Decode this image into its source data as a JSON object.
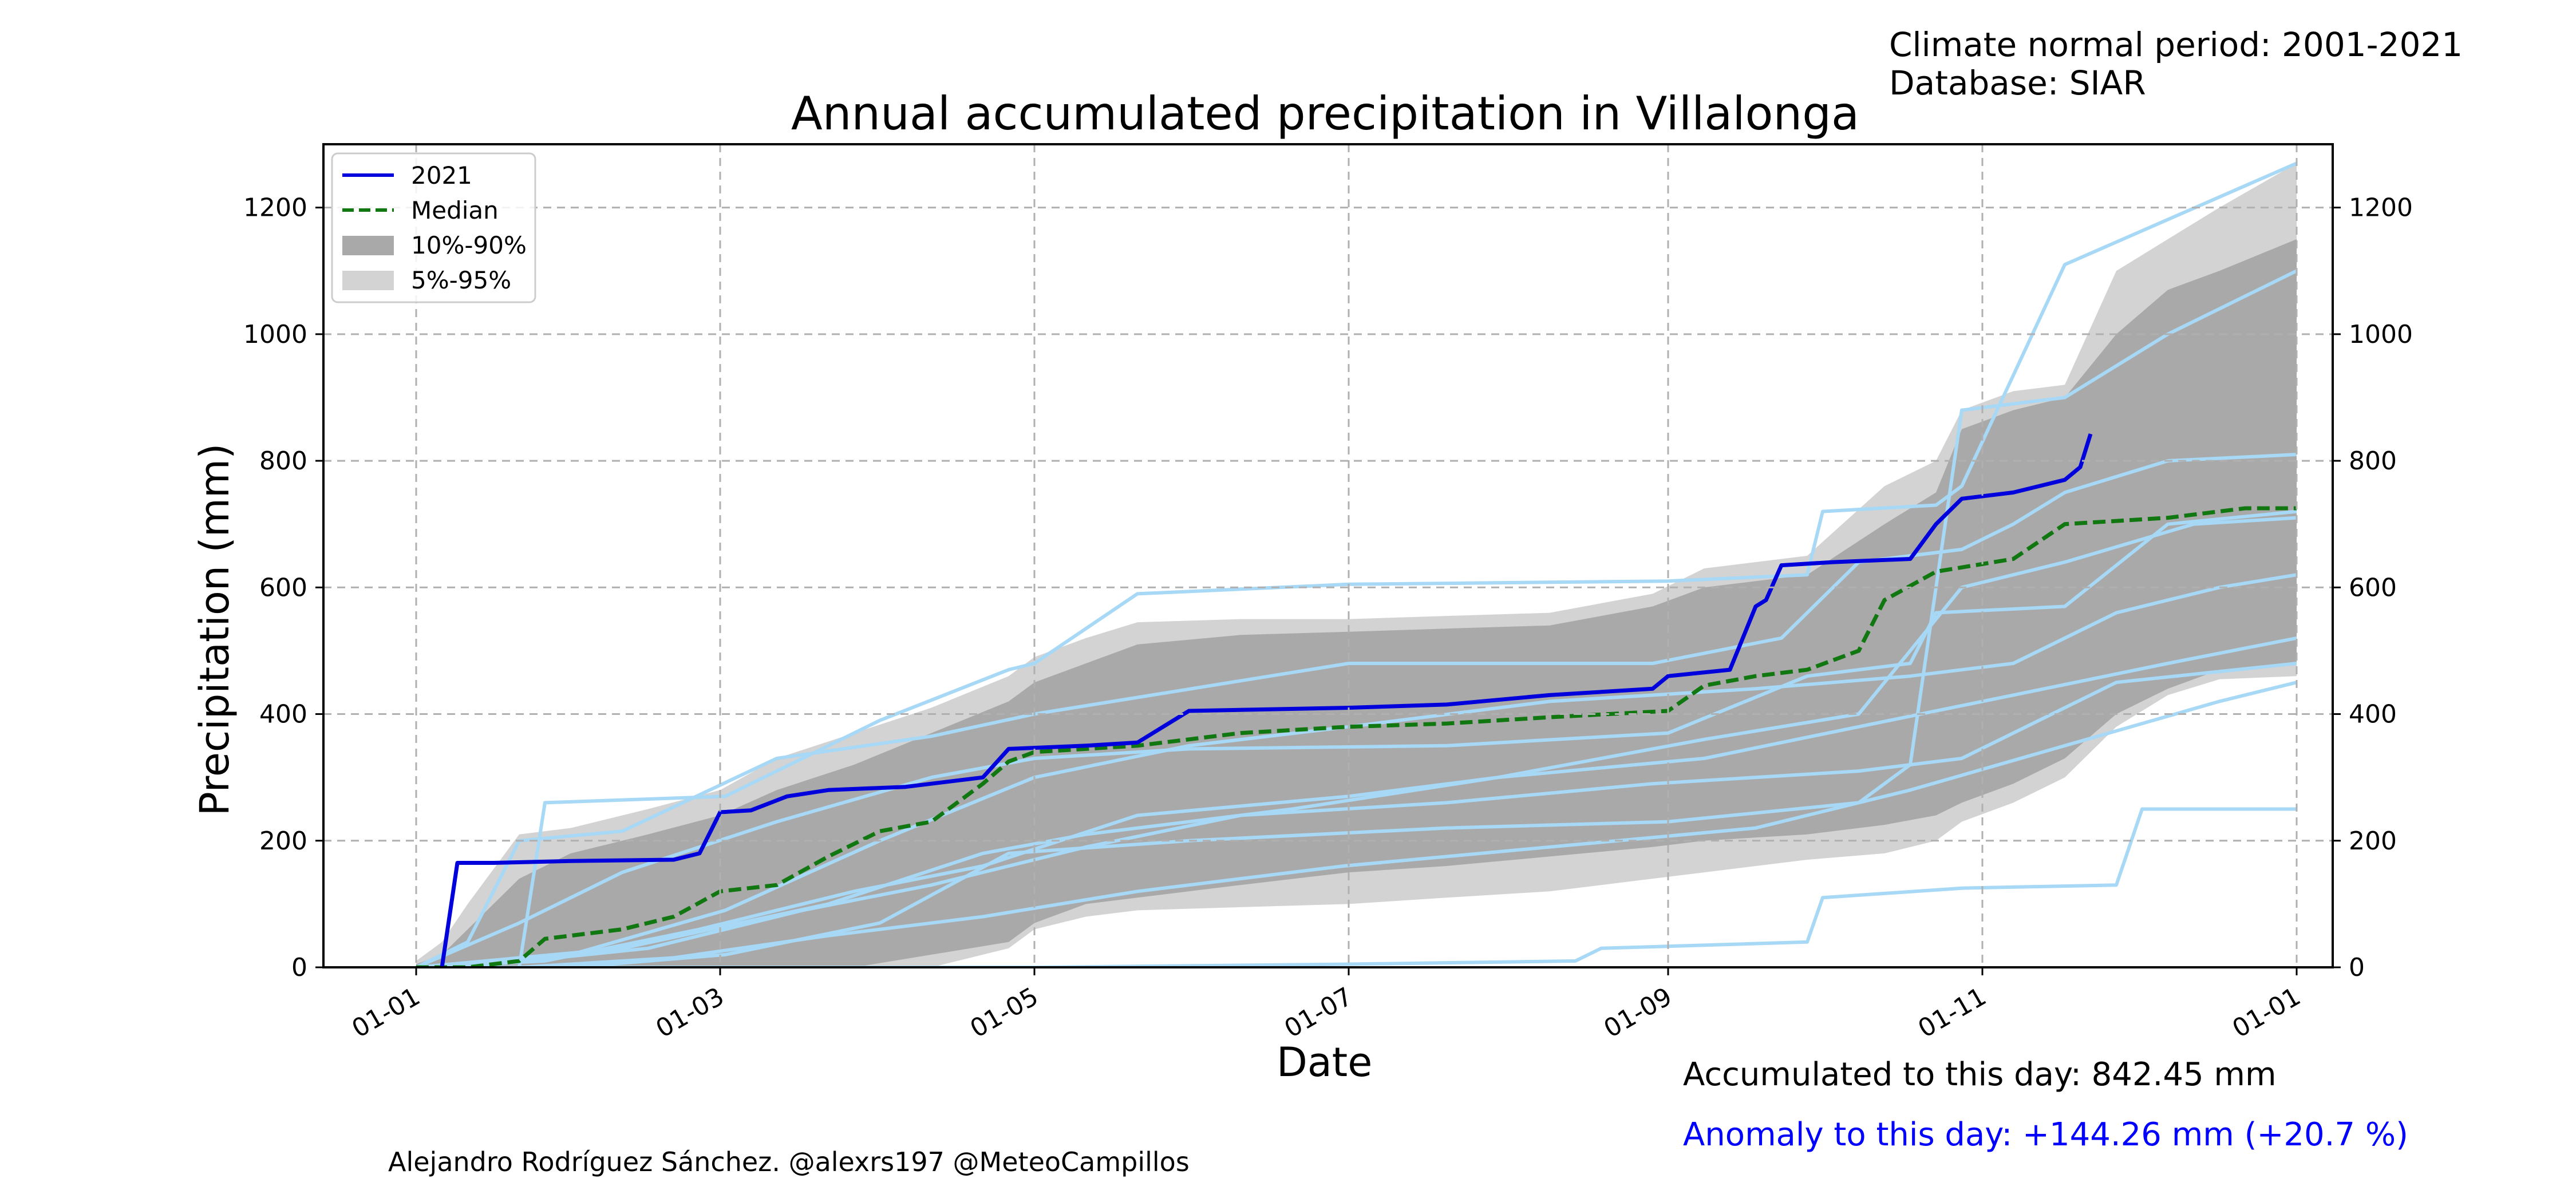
{
  "header": {
    "period": "Climate normal period: 2001-2021",
    "database": "Database: SIAR"
  },
  "footer": {
    "accumulated": "Accumulated to this day: 842.45 mm",
    "anomaly": "Anomaly to this day: +144.26 mm (+20.7 %)",
    "credit": "Alejandro Rodríguez Sánchez. @alexrs197 @MeteoCampillos"
  },
  "colors": {
    "current": "#0000dd",
    "median": "#117711",
    "band_10_90": "#a9a9a9",
    "band_5_95": "#d3d3d3",
    "anomaly_text": "#0000ff",
    "historical": "#a7d8f5"
  },
  "chart_data": {
    "type": "line",
    "title": "Annual accumulated precipitation in Villalonga",
    "xlabel": "Date",
    "ylabel": "Precipitation (mm)",
    "xlim": [
      -18,
      372
    ],
    "ylim": [
      0,
      1300
    ],
    "grid": true,
    "legend_position": "top-left",
    "x_unit": "day of year",
    "xticks": [
      {
        "day": 0,
        "label": "01-01"
      },
      {
        "day": 59,
        "label": "01-03"
      },
      {
        "day": 120,
        "label": "01-05"
      },
      {
        "day": 181,
        "label": "01-07"
      },
      {
        "day": 243,
        "label": "01-09"
      },
      {
        "day": 304,
        "label": "01-11"
      },
      {
        "day": 365,
        "label": "01-01"
      }
    ],
    "yticks": [
      0,
      200,
      400,
      600,
      800,
      1000,
      1200
    ],
    "legend": [
      {
        "label": "2021",
        "kind": "line",
        "key": "current"
      },
      {
        "label": "Median",
        "kind": "dashed",
        "key": "median"
      },
      {
        "label": "10%-90%",
        "kind": "patch",
        "key": "band_10_90"
      },
      {
        "label": "5%-95%",
        "kind": "patch",
        "key": "band_5_95"
      }
    ],
    "band_5_95": {
      "x": [
        0,
        5,
        10,
        20,
        30,
        45,
        59,
        70,
        85,
        100,
        115,
        120,
        130,
        140,
        160,
        181,
        200,
        220,
        240,
        250,
        270,
        285,
        295,
        300,
        310,
        320,
        330,
        340,
        350,
        365
      ],
      "lower": [
        0,
        0,
        0,
        0,
        0,
        0,
        0,
        0,
        0,
        0,
        30,
        60,
        80,
        90,
        95,
        100,
        110,
        120,
        140,
        150,
        170,
        180,
        200,
        230,
        260,
        300,
        380,
        430,
        455,
        460
      ],
      "upper": [
        10,
        40,
        100,
        210,
        220,
        250,
        280,
        330,
        370,
        410,
        460,
        490,
        520,
        545,
        550,
        550,
        555,
        560,
        590,
        630,
        650,
        760,
        800,
        880,
        910,
        920,
        1100,
        1150,
        1200,
        1270
      ]
    },
    "band_10_90": {
      "x": [
        0,
        5,
        10,
        20,
        30,
        45,
        59,
        70,
        85,
        100,
        115,
        120,
        130,
        140,
        160,
        181,
        200,
        220,
        240,
        250,
        270,
        285,
        295,
        300,
        310,
        320,
        330,
        340,
        350,
        365
      ],
      "lower": [
        0,
        0,
        0,
        0,
        0,
        0,
        0,
        0,
        0,
        20,
        40,
        70,
        100,
        110,
        130,
        150,
        160,
        175,
        190,
        200,
        210,
        225,
        240,
        260,
        290,
        330,
        400,
        440,
        470,
        480
      ],
      "upper": [
        5,
        20,
        60,
        140,
        180,
        210,
        240,
        280,
        320,
        370,
        420,
        450,
        480,
        510,
        525,
        530,
        535,
        540,
        570,
        600,
        620,
        700,
        750,
        850,
        880,
        900,
        1000,
        1070,
        1100,
        1150
      ]
    },
    "historical_series": [
      {
        "x": [
          0,
          20,
          25,
          60,
          90,
          115,
          120,
          140,
          181,
          243,
          270,
          273,
          295,
          300,
          320,
          365
        ],
        "y": [
          0,
          0,
          260,
          270,
          390,
          470,
          480,
          590,
          605,
          610,
          620,
          720,
          730,
          760,
          1110,
          1270
        ]
      },
      {
        "x": [
          0,
          10,
          20,
          40,
          70,
          100,
          120,
          181,
          240,
          265,
          280,
          300,
          310,
          320,
          340,
          365
        ],
        "y": [
          0,
          40,
          200,
          215,
          330,
          365,
          400,
          480,
          480,
          520,
          640,
          660,
          700,
          750,
          800,
          810
        ]
      },
      {
        "x": [
          0,
          20,
          40,
          70,
          100,
          120,
          150,
          200,
          243,
          270,
          290,
          295,
          320,
          340,
          365
        ],
        "y": [
          0,
          70,
          150,
          230,
          300,
          330,
          345,
          350,
          370,
          460,
          480,
          560,
          570,
          700,
          720
        ]
      },
      {
        "x": [
          0,
          30,
          60,
          90,
          120,
          150,
          181,
          220,
          260,
          290,
          310,
          330,
          350,
          365
        ],
        "y": [
          0,
          20,
          90,
          200,
          300,
          350,
          380,
          420,
          440,
          460,
          480,
          560,
          600,
          620
        ]
      },
      {
        "x": [
          0,
          25,
          55,
          85,
          110,
          140,
          181,
          210,
          250,
          280,
          310,
          340,
          365
        ],
        "y": [
          0,
          10,
          60,
          120,
          160,
          240,
          270,
          300,
          330,
          380,
          430,
          480,
          520
        ]
      },
      {
        "x": [
          0,
          15,
          45,
          75,
          100,
          130,
          160,
          200,
          240,
          280,
          300,
          330,
          365
        ],
        "y": [
          0,
          5,
          30,
          90,
          130,
          190,
          240,
          260,
          290,
          310,
          330,
          450,
          480
        ]
      },
      {
        "x": [
          0,
          30,
          60,
          90,
          115,
          150,
          200,
          243,
          280,
          290,
          300,
          320,
          340,
          365
        ],
        "y": [
          0,
          0,
          20,
          70,
          180,
          200,
          220,
          230,
          260,
          320,
          880,
          900,
          1000,
          1100
        ]
      },
      {
        "x": [
          0,
          40,
          80,
          110,
          130,
          170,
          210,
          250,
          280,
          300,
          320,
          345,
          365
        ],
        "y": [
          0,
          30,
          100,
          180,
          210,
          250,
          300,
          360,
          400,
          600,
          640,
          700,
          710
        ]
      },
      {
        "x": [
          0,
          20,
          50,
          80,
          110,
          140,
          180,
          220,
          260,
          290,
          320,
          350,
          365
        ],
        "y": [
          0,
          0,
          15,
          50,
          80,
          120,
          160,
          190,
          220,
          280,
          350,
          420,
          450
        ]
      },
      {
        "x": [
          0,
          120,
          181,
          225,
          230,
          270,
          273,
          300,
          330,
          335,
          365
        ],
        "y": [
          0,
          0,
          5,
          10,
          30,
          40,
          110,
          125,
          130,
          250,
          250
        ]
      }
    ],
    "median": {
      "x": [
        0,
        10,
        20,
        25,
        40,
        50,
        59,
        70,
        80,
        90,
        100,
        110,
        115,
        120,
        140,
        160,
        181,
        200,
        220,
        243,
        250,
        260,
        270,
        280,
        285,
        295,
        310,
        320,
        340,
        355,
        365
      ],
      "y": [
        0,
        0,
        10,
        45,
        60,
        80,
        120,
        130,
        175,
        215,
        230,
        290,
        325,
        340,
        350,
        370,
        380,
        385,
        395,
        405,
        445,
        460,
        470,
        500,
        580,
        625,
        645,
        700,
        710,
        725,
        725
      ]
    },
    "current_2021": {
      "x": [
        5,
        8,
        15,
        30,
        50,
        55,
        59,
        65,
        72,
        80,
        95,
        100,
        110,
        115,
        130,
        140,
        150,
        181,
        200,
        220,
        240,
        243,
        255,
        260,
        262,
        265,
        275,
        290,
        295,
        300,
        310,
        320,
        323,
        325
      ],
      "y": [
        0,
        165,
        165,
        168,
        170,
        180,
        245,
        248,
        270,
        280,
        285,
        290,
        300,
        345,
        350,
        355,
        405,
        410,
        415,
        430,
        440,
        460,
        470,
        570,
        580,
        635,
        640,
        645,
        700,
        740,
        750,
        770,
        790,
        842.45
      ]
    }
  }
}
